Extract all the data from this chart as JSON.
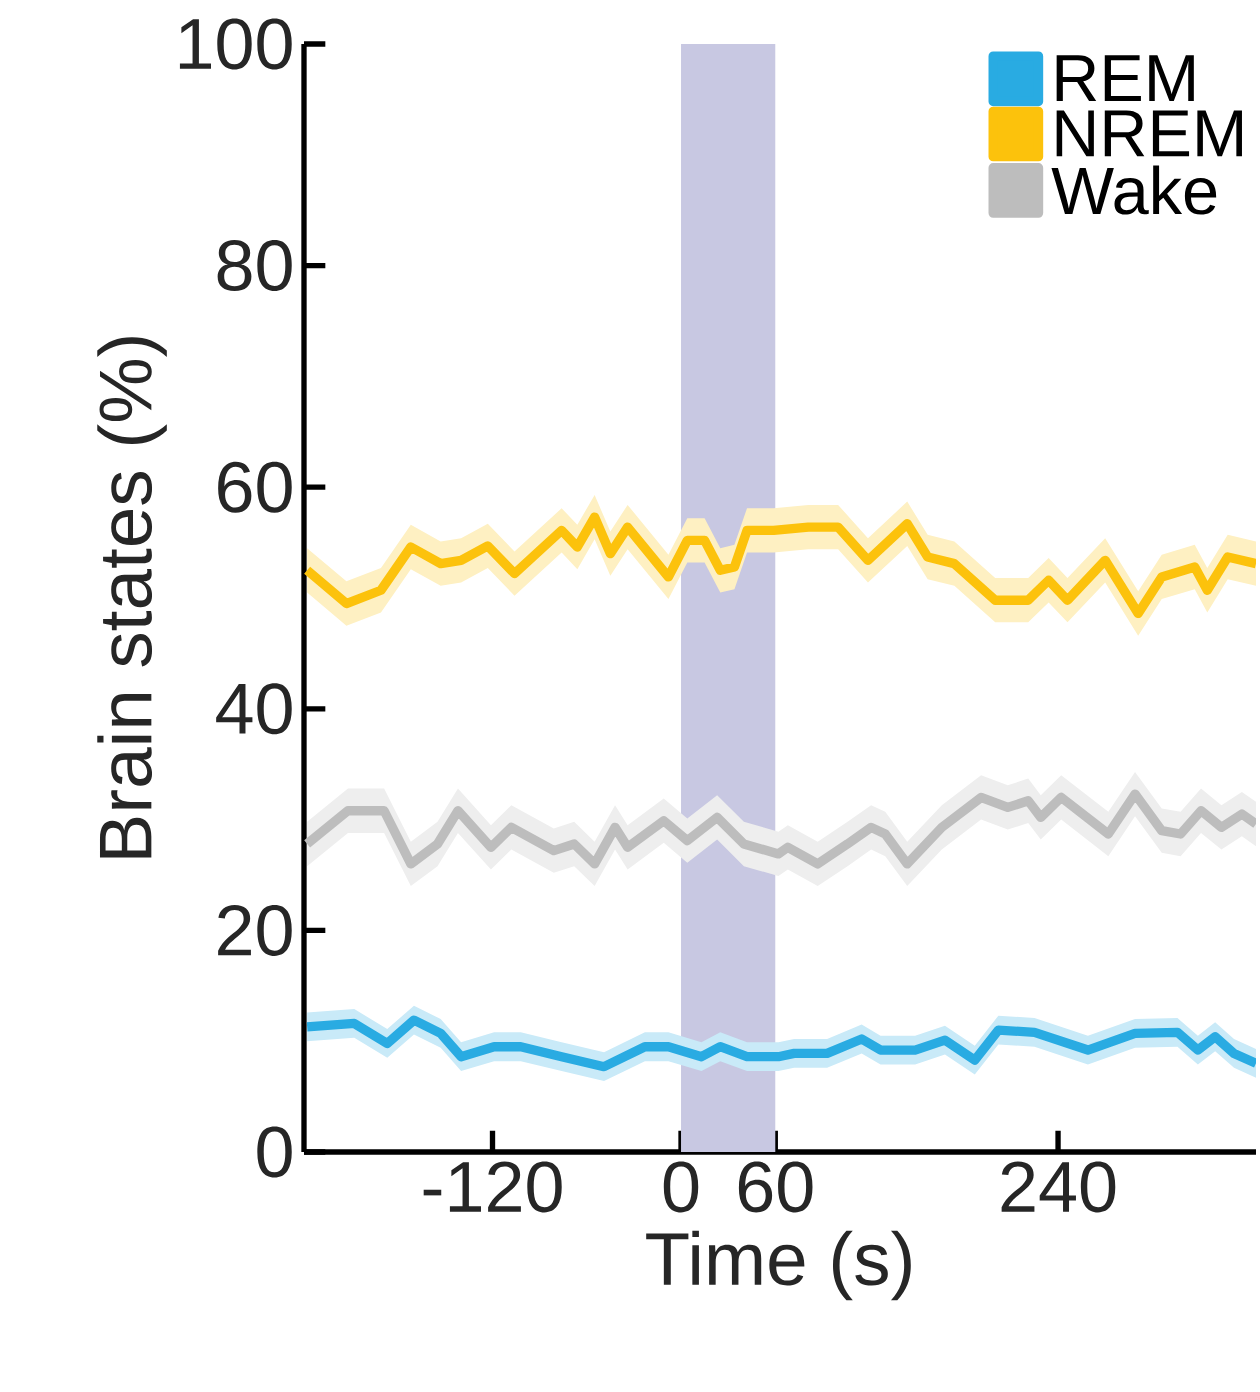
{
  "chart_data": {
    "type": "line",
    "xlabel": "Time (s)",
    "ylabel": "Brain states (%)",
    "xlim": [
      -240,
      366
    ],
    "ylim": [
      0,
      100
    ],
    "xticks": [
      -120,
      0,
      60,
      240
    ],
    "yticks": [
      0,
      20,
      40,
      60,
      80,
      100
    ],
    "grid": false,
    "legend": "top right",
    "marker": "none",
    "line_style": "solid",
    "bands": [
      {
        "axis": "x",
        "from": 0,
        "to": 60,
        "color": "#c8c8e2"
      }
    ],
    "series": [
      {
        "name": "REM",
        "color": "#29abe2",
        "x": [
          -238,
          -208,
          -187,
          -170,
          -153,
          -140,
          -119,
          -102,
          -76,
          -49,
          -23,
          -8,
          13,
          25,
          42,
          62,
          72,
          93,
          115,
          127,
          149,
          168,
          187,
          202,
          225,
          259,
          289,
          316,
          329,
          340,
          352,
          366
        ],
        "values": [
          11.3,
          11.6,
          9.8,
          11.9,
          10.7,
          8.6,
          9.5,
          9.5,
          8.6,
          7.7,
          9.5,
          9.5,
          8.6,
          9.5,
          8.6,
          8.6,
          8.9,
          8.9,
          10.2,
          9.2,
          9.2,
          10.1,
          8.3,
          11,
          10.8,
          9.2,
          10.7,
          10.8,
          9.2,
          10.4,
          8.9,
          8
        ],
        "lower": [
          10,
          10.3,
          8.5,
          10.6,
          9.4,
          7.3,
          8.2,
          8.2,
          7.3,
          6.4,
          8.2,
          8.2,
          7.3,
          8.2,
          7.3,
          7.3,
          7.6,
          7.6,
          8.9,
          7.9,
          7.9,
          8.8,
          7,
          9.7,
          9.5,
          7.9,
          9.4,
          9.5,
          7.9,
          9.1,
          7.6,
          6.7
        ],
        "upper": [
          12.6,
          12.9,
          11.1,
          13.2,
          12,
          9.9,
          10.8,
          10.8,
          9.9,
          9,
          10.8,
          10.8,
          9.9,
          10.8,
          9.9,
          9.9,
          10.2,
          10.2,
          11.5,
          10.5,
          10.5,
          11.4,
          9.6,
          12.3,
          12.1,
          10.5,
          12,
          12.1,
          10.5,
          11.7,
          10.2,
          9.3
        ]
      },
      {
        "name": "NREM",
        "color": "#fcc20c",
        "x": [
          -238,
          -213,
          -191,
          -172,
          -153,
          -140,
          -123,
          -106,
          -76,
          -66,
          -55,
          -45,
          -34,
          -8,
          4,
          15,
          25,
          34,
          42,
          59,
          81,
          100,
          119,
          144,
          157,
          174,
          200,
          221,
          234,
          246,
          270,
          291,
          306,
          327,
          335,
          348,
          366
        ],
        "values": [
          52.5,
          49.5,
          50.7,
          54.6,
          53.1,
          53.4,
          54.7,
          52.2,
          56.1,
          54.6,
          57.3,
          54,
          56.4,
          51.9,
          55.2,
          55.2,
          52.5,
          52.8,
          56.1,
          56.1,
          56.4,
          56.4,
          53.4,
          56.7,
          53.7,
          53.1,
          49.8,
          49.8,
          51.6,
          49.8,
          53.4,
          48.6,
          51.9,
          52.8,
          50.7,
          53.7,
          53.1
        ],
        "lower": [
          50.5,
          47.5,
          48.7,
          52.6,
          51.1,
          51.4,
          52.7,
          50.2,
          54.1,
          52.6,
          55.3,
          52,
          54.4,
          49.9,
          53.2,
          53.2,
          50.5,
          50.8,
          54.1,
          54.1,
          54.4,
          54.4,
          51.4,
          54.7,
          51.7,
          51.1,
          47.8,
          47.8,
          49.6,
          47.8,
          51.4,
          46.6,
          49.9,
          50.8,
          48.7,
          51.7,
          51.1
        ],
        "upper": [
          54.5,
          51.5,
          52.7,
          56.6,
          55.1,
          55.4,
          56.7,
          54.2,
          58.1,
          56.6,
          59.3,
          56,
          58.4,
          53.9,
          57.2,
          57.2,
          54.5,
          54.8,
          58.1,
          58.1,
          58.4,
          58.4,
          55.4,
          58.7,
          55.7,
          55.1,
          51.8,
          51.8,
          53.6,
          51.8,
          55.4,
          50.6,
          53.9,
          54.8,
          52.7,
          55.7,
          55.1
        ]
      },
      {
        "name": "Wake",
        "color": "#bdbdbd",
        "x": [
          -238,
          -212,
          -189,
          -172,
          -155,
          -142,
          -121,
          -108,
          -81,
          -68,
          -55,
          -42,
          -34,
          -11,
          4,
          23,
          40,
          62,
          68,
          87,
          106,
          121,
          130,
          144,
          166,
          191,
          208,
          221,
          229,
          242,
          272,
          289,
          306,
          318,
          331,
          344,
          357,
          366
        ],
        "values": [
          27.8,
          30.8,
          30.8,
          26,
          27.8,
          30.8,
          27.5,
          29.3,
          27.2,
          27.8,
          26,
          29.3,
          27.5,
          29.9,
          28.1,
          30.2,
          27.8,
          26.9,
          27.5,
          26,
          27.8,
          29.3,
          28.7,
          26,
          29.3,
          32,
          31.1,
          31.7,
          30.2,
          32,
          28.7,
          32.3,
          29,
          28.7,
          30.8,
          29.3,
          30.5,
          29.6
        ],
        "lower": [
          25.8,
          28.8,
          28.8,
          24,
          25.8,
          28.8,
          25.5,
          27.3,
          25.2,
          25.8,
          24,
          27.3,
          25.5,
          27.9,
          26.1,
          28.2,
          25.8,
          24.9,
          25.5,
          24,
          25.8,
          27.3,
          26.7,
          24,
          27.3,
          30,
          29.1,
          29.7,
          28.2,
          30,
          26.7,
          30.3,
          27,
          26.7,
          28.8,
          27.3,
          28.5,
          27.6
        ],
        "upper": [
          29.8,
          32.8,
          32.8,
          28,
          29.8,
          32.8,
          29.5,
          31.3,
          29.2,
          29.8,
          28,
          31.3,
          29.5,
          31.9,
          30.1,
          32.2,
          29.8,
          28.9,
          29.5,
          28,
          29.8,
          31.3,
          30.7,
          28,
          31.3,
          34,
          33.1,
          33.7,
          32.2,
          34,
          30.7,
          34.3,
          31,
          30.7,
          32.8,
          31.3,
          32.5,
          31.6
        ]
      }
    ]
  }
}
